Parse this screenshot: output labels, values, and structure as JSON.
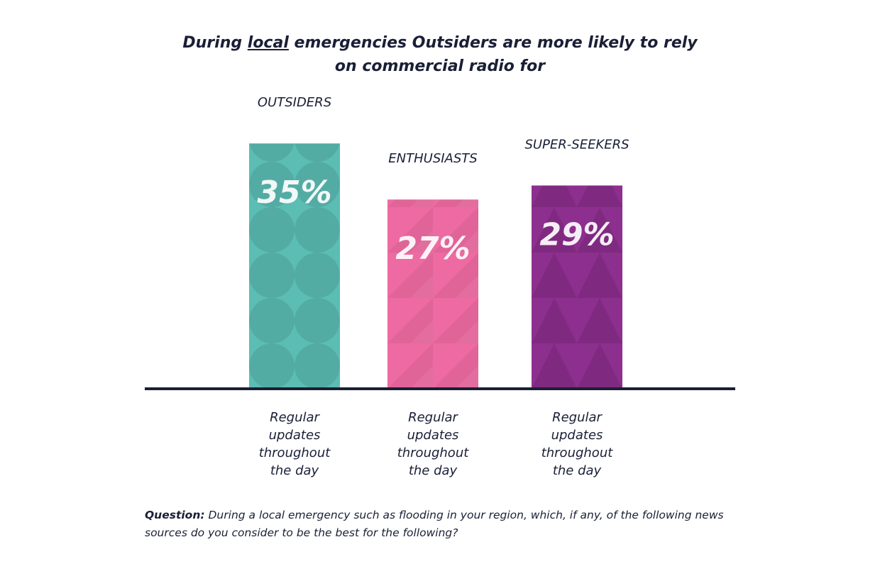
{
  "chart_data": {
    "type": "bar",
    "title_parts": [
      "During",
      "local",
      "emergencies Outsiders are more likely to rely on commercial radio for"
    ],
    "categories": [
      "OUTSIDERS",
      "ENTHUSIASTS",
      "SUPER-SEEKERS"
    ],
    "values": [
      35,
      27,
      29
    ],
    "value_labels": [
      "35%",
      "27%",
      "29%"
    ],
    "colors": [
      "#5bbdb4",
      "#ee6aa2",
      "#8d2f8e"
    ],
    "sublabels": [
      "Regular updates throughout the day",
      "Regular updates throughout the day",
      "Regular updates throughout the day"
    ],
    "note_label": "Question:",
    "note": "During a local emergency such as flooding in your region, which, if any, of the following news sources do you consider to be the best for the following?"
  }
}
